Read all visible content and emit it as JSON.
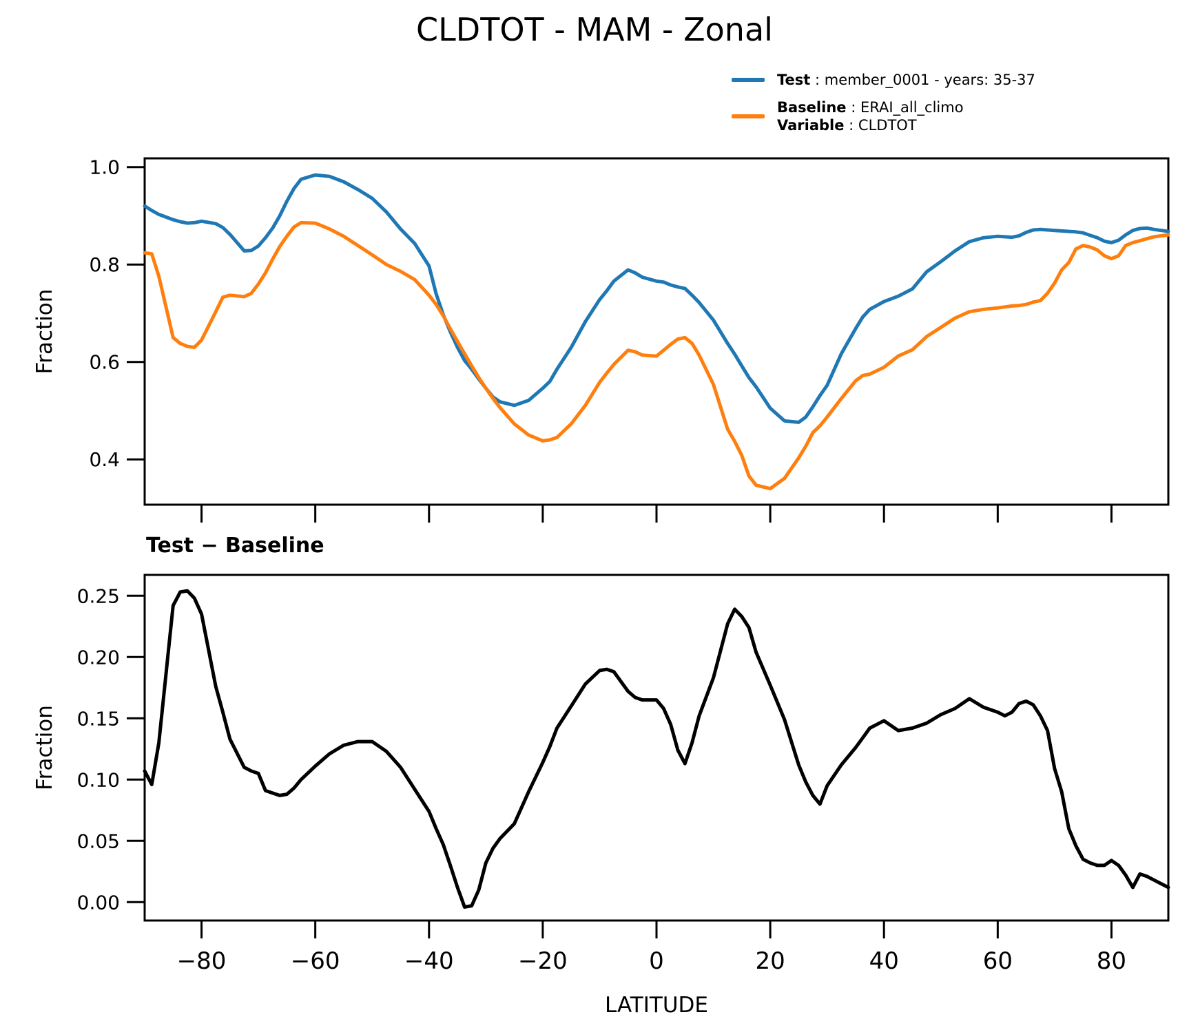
{
  "header": {
    "title": "CLDTOT - MAM - Zonal"
  },
  "legend": {
    "entries": [
      {
        "swatch_color": "#1f77b4",
        "label": "Test",
        "value": " : member_0001 - years: 35-37"
      },
      {
        "swatch_color": "#ff7f0e",
        "label": "Baseline",
        "value": " : ERAI_all_climo",
        "label2": "Variable",
        "value2": " : CLDTOT"
      }
    ]
  },
  "chart_data": [
    {
      "type": "line",
      "ylabel": "Fraction",
      "xlim": [
        -90,
        90
      ],
      "ylim": [
        0.307,
        1.018
      ],
      "ytick_values": [
        1.0,
        0.8,
        0.6,
        0.4
      ],
      "ytick_labels": [
        "1.0",
        "0.8",
        "0.6",
        "0.4"
      ],
      "xtick_values": [
        -80,
        -60,
        -40,
        -20,
        0,
        20,
        40,
        60,
        80
      ],
      "xtick_labels": null,
      "grid": false,
      "x": [
        -90,
        -88.75,
        -87.5,
        -85,
        -83.75,
        -82.5,
        -81.25,
        -80,
        -77.5,
        -76.25,
        -75,
        -72.5,
        -71.25,
        -70,
        -68.75,
        -67.5,
        -66.25,
        -65,
        -63.75,
        -62.5,
        -60,
        -57.5,
        -55,
        -52.5,
        -50,
        -47.5,
        -45,
        -42.5,
        -40,
        -38.75,
        -37.5,
        -36.25,
        -35,
        -33.75,
        -32.5,
        -31.25,
        -30,
        -28.75,
        -27.5,
        -25,
        -22.5,
        -20,
        -18.75,
        -17.5,
        -15,
        -12.5,
        -10,
        -8.75,
        -7.5,
        -5,
        -3.75,
        -2.5,
        0,
        1.25,
        2.5,
        3.75,
        5,
        6.25,
        7.5,
        10,
        12.5,
        13.75,
        15,
        16.25,
        17.5,
        20,
        22.5,
        25,
        26.25,
        27.5,
        28.75,
        30,
        32.5,
        35,
        36.25,
        37.5,
        40,
        42.5,
        45,
        47.5,
        50,
        52.5,
        55,
        57.5,
        60,
        61.25,
        62.5,
        63.75,
        65,
        66.25,
        67.5,
        68.75,
        70,
        71.25,
        72.5,
        73.75,
        75,
        76.25,
        77.5,
        78.75,
        80,
        81.25,
        82.5,
        83.75,
        85,
        86.25,
        87.5,
        88.75,
        90
      ],
      "series": [
        {
          "name": "Test",
          "color": "#1f77b4",
          "values": [
            0.92,
            0.911,
            0.903,
            0.892,
            0.888,
            0.885,
            0.886,
            0.889,
            0.884,
            0.876,
            0.862,
            0.828,
            0.829,
            0.838,
            0.855,
            0.875,
            0.9,
            0.93,
            0.956,
            0.975,
            0.984,
            0.981,
            0.97,
            0.954,
            0.936,
            0.908,
            0.873,
            0.843,
            0.797,
            0.74,
            0.697,
            0.662,
            0.63,
            0.603,
            0.585,
            0.565,
            0.546,
            0.528,
            0.518,
            0.511,
            0.521,
            0.546,
            0.56,
            0.585,
            0.63,
            0.683,
            0.728,
            0.746,
            0.766,
            0.789,
            0.783,
            0.774,
            0.766,
            0.764,
            0.758,
            0.754,
            0.751,
            0.737,
            0.722,
            0.686,
            0.638,
            0.616,
            0.592,
            0.568,
            0.549,
            0.505,
            0.479,
            0.476,
            0.487,
            0.508,
            0.531,
            0.552,
            0.617,
            0.668,
            0.692,
            0.708,
            0.724,
            0.735,
            0.75,
            0.785,
            0.806,
            0.828,
            0.847,
            0.855,
            0.858,
            0.857,
            0.856,
            0.859,
            0.866,
            0.871,
            0.872,
            0.871,
            0.87,
            0.869,
            0.868,
            0.867,
            0.865,
            0.86,
            0.855,
            0.848,
            0.845,
            0.85,
            0.861,
            0.87,
            0.874,
            0.875,
            0.872,
            0.87,
            0.868
          ]
        },
        {
          "name": "Baseline",
          "color": "#ff7f0e",
          "values": [
            0.824,
            0.822,
            0.776,
            0.65,
            0.638,
            0.632,
            0.63,
            0.645,
            0.703,
            0.733,
            0.737,
            0.734,
            0.741,
            0.76,
            0.783,
            0.811,
            0.837,
            0.858,
            0.877,
            0.886,
            0.885,
            0.873,
            0.858,
            0.839,
            0.82,
            0.8,
            0.786,
            0.769,
            0.737,
            0.718,
            0.695,
            0.668,
            0.642,
            0.617,
            0.592,
            0.568,
            0.546,
            0.525,
            0.506,
            0.473,
            0.45,
            0.438,
            0.44,
            0.445,
            0.473,
            0.511,
            0.558,
            0.577,
            0.595,
            0.624,
            0.621,
            0.614,
            0.612,
            0.624,
            0.636,
            0.647,
            0.65,
            0.638,
            0.614,
            0.554,
            0.462,
            0.437,
            0.408,
            0.366,
            0.347,
            0.34,
            0.361,
            0.403,
            0.427,
            0.455,
            0.469,
            0.487,
            0.525,
            0.561,
            0.572,
            0.575,
            0.589,
            0.612,
            0.625,
            0.652,
            0.671,
            0.69,
            0.703,
            0.708,
            0.711,
            0.713,
            0.715,
            0.716,
            0.718,
            0.723,
            0.726,
            0.741,
            0.762,
            0.789,
            0.804,
            0.832,
            0.839,
            0.836,
            0.83,
            0.818,
            0.812,
            0.818,
            0.839,
            0.845,
            0.849,
            0.853,
            0.857,
            0.859,
            0.861
          ]
        }
      ]
    },
    {
      "type": "line",
      "title": "Test − Baseline",
      "ylabel": "Fraction",
      "xlabel": "LATITUDE",
      "xlim": [
        -90,
        90
      ],
      "ylim": [
        -0.015,
        0.267
      ],
      "ytick_values": [
        0.25,
        0.2,
        0.15,
        0.1,
        0.05,
        0.0
      ],
      "ytick_labels": [
        "0.25",
        "0.20",
        "0.15",
        "0.10",
        "0.05",
        "0.00"
      ],
      "xtick_values": [
        -80,
        -60,
        -40,
        -20,
        0,
        20,
        40,
        60,
        80
      ],
      "xtick_labels": [
        "−80",
        "−60",
        "−40",
        "−20",
        "0",
        "20",
        "40",
        "60",
        "80"
      ],
      "grid": false,
      "x": [
        -90,
        -88.75,
        -87.5,
        -85,
        -83.75,
        -82.5,
        -81.25,
        -80,
        -77.5,
        -76.25,
        -75,
        -72.5,
        -71.25,
        -70,
        -68.75,
        -67.5,
        -66.25,
        -65,
        -63.75,
        -62.5,
        -60,
        -57.5,
        -55,
        -52.5,
        -50,
        -47.5,
        -45,
        -42.5,
        -40,
        -38.75,
        -37.5,
        -36.25,
        -35,
        -33.75,
        -32.5,
        -31.25,
        -30,
        -28.75,
        -27.5,
        -25,
        -22.5,
        -20,
        -18.75,
        -17.5,
        -15,
        -12.5,
        -10,
        -8.75,
        -7.5,
        -5,
        -3.75,
        -2.5,
        0,
        1.25,
        2.5,
        3.75,
        5,
        6.25,
        7.5,
        10,
        12.5,
        13.75,
        15,
        16.25,
        17.5,
        20,
        22.5,
        25,
        26.25,
        27.5,
        28.75,
        30,
        32.5,
        35,
        36.25,
        37.5,
        40,
        42.5,
        45,
        47.5,
        50,
        52.5,
        55,
        57.5,
        60,
        61.25,
        62.5,
        63.75,
        65,
        66.25,
        67.5,
        68.75,
        70,
        71.25,
        72.5,
        73.75,
        75,
        76.25,
        77.5,
        78.75,
        80,
        81.25,
        82.5,
        83.75,
        85,
        86.25,
        87.5,
        88.75,
        90
      ],
      "series": [
        {
          "name": "Test − Baseline",
          "color": "#000000",
          "values": [
            0.107,
            0.096,
            0.13,
            0.242,
            0.253,
            0.254,
            0.248,
            0.235,
            0.176,
            0.155,
            0.133,
            0.11,
            0.107,
            0.105,
            0.091,
            0.089,
            0.087,
            0.088,
            0.093,
            0.1,
            0.111,
            0.121,
            0.128,
            0.131,
            0.131,
            0.123,
            0.11,
            0.092,
            0.074,
            0.06,
            0.047,
            0.03,
            0.012,
            -0.004,
            -0.003,
            0.01,
            0.032,
            0.044,
            0.052,
            0.064,
            0.09,
            0.114,
            0.127,
            0.142,
            0.16,
            0.178,
            0.189,
            0.19,
            0.188,
            0.172,
            0.167,
            0.165,
            0.165,
            0.158,
            0.145,
            0.124,
            0.113,
            0.13,
            0.152,
            0.183,
            0.227,
            0.239,
            0.233,
            0.224,
            0.204,
            0.177,
            0.149,
            0.112,
            0.098,
            0.087,
            0.08,
            0.095,
            0.112,
            0.126,
            0.134,
            0.142,
            0.148,
            0.14,
            0.142,
            0.146,
            0.153,
            0.158,
            0.166,
            0.159,
            0.155,
            0.152,
            0.155,
            0.162,
            0.164,
            0.161,
            0.152,
            0.14,
            0.109,
            0.09,
            0.06,
            0.046,
            0.035,
            0.032,
            0.03,
            0.03,
            0.034,
            0.03,
            0.022,
            0.012,
            0.023,
            0.021,
            0.018,
            0.015,
            0.012
          ]
        }
      ]
    }
  ]
}
